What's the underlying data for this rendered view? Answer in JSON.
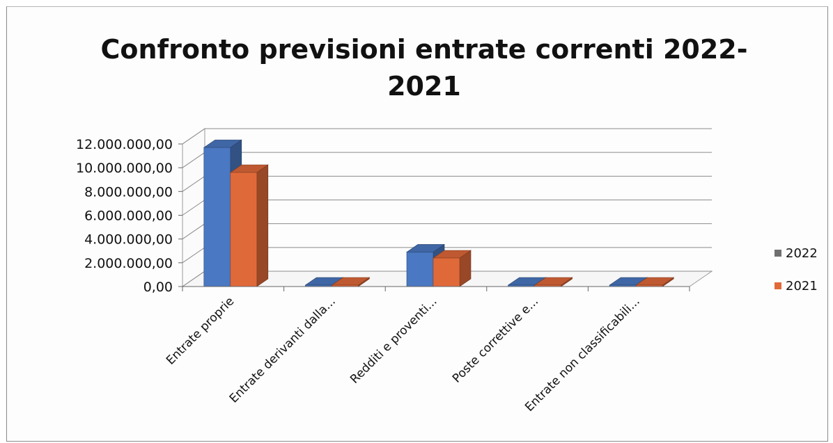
{
  "chart_data": {
    "type": "bar",
    "title_lines": [
      "Confronto previsioni entrate correnti 2022-",
      "2021"
    ],
    "categories": [
      "Entrate proprie",
      "Entrate derivanti dalla...",
      "Redditi e proventi...",
      "Poste correttive e...",
      "Entrate non classificabili..."
    ],
    "series": [
      {
        "name": "2022",
        "values": [
          11700000,
          0,
          2900000,
          0,
          0
        ],
        "color": "#4a78c2"
      },
      {
        "name": "2021",
        "values": [
          9600000,
          0,
          2400000,
          0,
          0
        ],
        "color": "#e0693a"
      }
    ],
    "ylim": [
      0,
      12000000
    ],
    "y_ticks": [
      "0,00",
      "2.000.000,00",
      "4.000.000,00",
      "6.000.000,00",
      "8.000.000,00",
      "10.000.000,00",
      "12.000.000,00"
    ],
    "legend_position": "right",
    "grid": true,
    "three_d": true
  }
}
